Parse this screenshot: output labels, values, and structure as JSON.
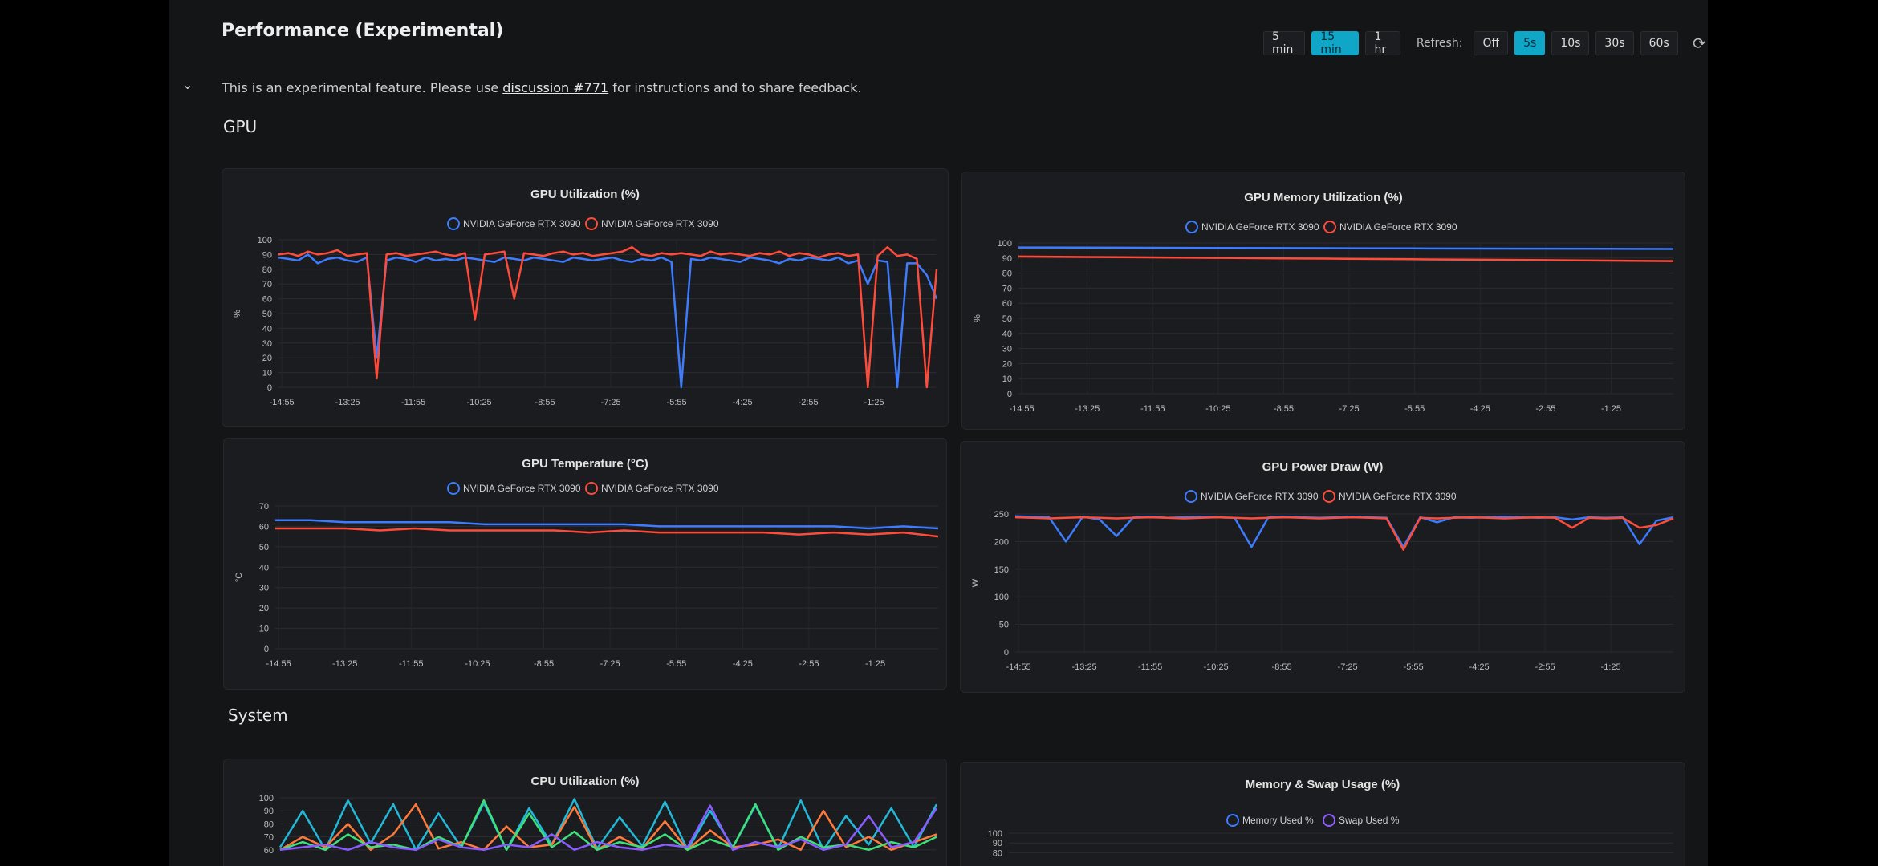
{
  "header": {
    "title": "Performance (Experimental)"
  },
  "notice": {
    "before": "This is an experimental feature. Please use ",
    "link": "discussion #771",
    "after": " for instructions and to share feedback."
  },
  "controls": {
    "ranges": [
      "5 min",
      "15 min",
      "1 hr"
    ],
    "active_range": "15 min",
    "refresh_label": "Refresh:",
    "refresh_options": [
      "Off",
      "5s",
      "10s",
      "30s",
      "60s"
    ],
    "active_refresh": "5s"
  },
  "left_marks": [
    "0",
    "0"
  ],
  "sections": {
    "gpu": "GPU",
    "system": "System"
  },
  "colors": {
    "blue": "#3d7bff",
    "red": "#ff4b3a",
    "cyan": "#22b8d8",
    "orange": "#ff7a3a",
    "green": "#3ee07a",
    "purple": "#8a5cff"
  },
  "charts": [
    {
      "id": "gpu-util",
      "chart_data": {
        "type": "line",
        "title": "GPU Utilization (%)",
        "ylabel": "%",
        "ylim": [
          0,
          100
        ],
        "yticks": [
          0,
          10,
          20,
          30,
          40,
          50,
          60,
          70,
          80,
          90,
          100
        ],
        "xticks": [
          "-14:55",
          "-13:25",
          "-11:55",
          "-10:25",
          "-8:55",
          "-7:25",
          "-5:55",
          "-4:25",
          "-2:55",
          "-1:25"
        ],
        "series": [
          {
            "name": "NVIDIA GeForce RTX 3090",
            "color": "#3d7bff",
            "values": [
              88,
              87,
              86,
              90,
              84,
              87,
              88,
              86,
              85,
              88,
              20,
              86,
              88,
              87,
              85,
              88,
              86,
              87,
              86,
              88,
              87,
              86,
              85,
              88,
              87,
              86,
              88,
              87,
              86,
              85,
              88,
              87,
              86,
              87,
              88,
              86,
              85,
              87,
              86,
              88,
              85,
              0,
              87,
              86,
              88,
              87,
              86,
              85,
              88,
              87,
              86,
              84,
              87,
              86,
              88,
              87,
              86,
              88,
              84,
              86,
              70,
              86,
              85,
              0,
              84,
              84,
              76,
              60
            ]
          },
          {
            "name": "NVIDIA GeForce RTX 3090",
            "color": "#ff4b3a",
            "values": [
              90,
              91,
              89,
              92,
              90,
              91,
              93,
              89,
              90,
              91,
              6,
              90,
              91,
              89,
              90,
              91,
              92,
              90,
              89,
              91,
              46,
              90,
              91,
              92,
              60,
              91,
              90,
              89,
              91,
              92,
              90,
              91,
              89,
              90,
              91,
              92,
              95,
              90,
              89,
              91,
              90,
              91,
              90,
              89,
              92,
              90,
              91,
              90,
              89,
              91,
              90,
              92,
              89,
              91,
              90,
              88,
              90,
              91,
              89,
              90,
              0,
              89,
              95,
              89,
              90,
              87,
              0,
              80
            ]
          }
        ]
      }
    },
    {
      "id": "gpu-mem",
      "chart_data": {
        "type": "line",
        "title": "GPU Memory Utilization (%)",
        "ylabel": "%",
        "ylim": [
          0,
          100
        ],
        "yticks": [
          0,
          10,
          20,
          30,
          40,
          50,
          60,
          70,
          80,
          90,
          100
        ],
        "xticks": [
          "-14:55",
          "-13:25",
          "-11:55",
          "-10:25",
          "-8:55",
          "-7:25",
          "-5:55",
          "-4:25",
          "-2:55",
          "-1:25"
        ],
        "series": [
          {
            "name": "NVIDIA GeForce RTX 3090",
            "color": "#3d7bff",
            "values": [
              97,
              96.9,
              96.8,
              96.7,
              96.6,
              96.5,
              96.4,
              96.3,
              96.2,
              96.1,
              96
            ]
          },
          {
            "name": "NVIDIA GeForce RTX 3090",
            "color": "#ff4b3a",
            "values": [
              91,
              90.7,
              90.4,
              90.1,
              89.8,
              89.5,
              89.2,
              88.9,
              88.6,
              88.3,
              88
            ]
          }
        ]
      }
    },
    {
      "id": "gpu-temp",
      "chart_data": {
        "type": "line",
        "title": "GPU Temperature (°C)",
        "ylabel": "°C",
        "ylim": [
          0,
          70
        ],
        "yticks": [
          0,
          10,
          20,
          30,
          40,
          50,
          60,
          70
        ],
        "xticks": [
          "-14:55",
          "-13:25",
          "-11:55",
          "-10:25",
          "-8:55",
          "-7:25",
          "-5:55",
          "-4:25",
          "-2:55",
          "-1:25"
        ],
        "series": [
          {
            "name": "NVIDIA GeForce RTX 3090",
            "color": "#3d7bff",
            "values": [
              63,
              63,
              62,
              62,
              62,
              62,
              61,
              61,
              61,
              61,
              61,
              60,
              60,
              60,
              60,
              60,
              60,
              59,
              60,
              59
            ]
          },
          {
            "name": "NVIDIA GeForce RTX 3090",
            "color": "#ff4b3a",
            "values": [
              59,
              59,
              59,
              58,
              59,
              58,
              58,
              58,
              58,
              57,
              58,
              57,
              57,
              57,
              57,
              56,
              57,
              56,
              57,
              55
            ]
          }
        ]
      }
    },
    {
      "id": "gpu-power",
      "chart_data": {
        "type": "line",
        "title": "GPU Power Draw (W)",
        "ylabel": "W",
        "ylim": [
          0,
          250
        ],
        "yticks": [
          0,
          50,
          100,
          150,
          200,
          250
        ],
        "xticks": [
          "-14:55",
          "-13:25",
          "-11:55",
          "-10:25",
          "-8:55",
          "-7:25",
          "-5:55",
          "-4:25",
          "-2:55",
          "-1:25"
        ],
        "series": [
          {
            "name": "NVIDIA GeForce RTX 3090",
            "color": "#3d7bff",
            "values": [
              246,
              245,
              244,
              200,
              245,
              240,
              210,
              244,
              245,
              243,
              244,
              245,
              244,
              243,
              190,
              244,
              245,
              244,
              243,
              244,
              245,
              244,
              243,
              190,
              244,
              235,
              244,
              243,
              244,
              245,
              244,
              243,
              244,
              240,
              244,
              243,
              244,
              195,
              238,
              244
            ]
          },
          {
            "name": "NVIDIA GeForce RTX 3090",
            "color": "#ff4b3a",
            "values": [
              244,
              243,
              242,
              243,
              244,
              243,
              242,
              243,
              244,
              243,
              242,
              243,
              244,
              243,
              242,
              243,
              244,
              243,
              242,
              243,
              244,
              243,
              242,
              185,
              243,
              242,
              243,
              244,
              243,
              242,
              243,
              244,
              243,
              225,
              243,
              242,
              243,
              225,
              230,
              242
            ]
          }
        ]
      }
    },
    {
      "id": "cpu-util",
      "chart_data": {
        "type": "line",
        "title": "CPU Utilization (%)",
        "ylabel": "",
        "ylim": [
          0,
          100
        ],
        "yticks": [
          60,
          70,
          80,
          90,
          100
        ],
        "xticks": [],
        "series": [
          {
            "color": "#22b8d8",
            "values": [
              62,
              90,
              60,
              98,
              65,
              95,
              60,
              88,
              62,
              96,
              60,
              92,
              64,
              99,
              61,
              85,
              63,
              97,
              60,
              90,
              62,
              94,
              61,
              98,
              60,
              86,
              64,
              92,
              62,
              95
            ]
          },
          {
            "color": "#ff7a3a",
            "values": [
              60,
              70,
              62,
              80,
              60,
              72,
              95,
              61,
              66,
              60,
              78,
              62,
              64,
              93,
              60,
              70,
              61,
              82,
              60,
              75,
              62,
              64,
              68,
              60,
              90,
              62,
              70,
              60,
              66,
              72
            ]
          },
          {
            "color": "#3ee07a",
            "values": [
              60,
              66,
              60,
              72,
              62,
              64,
              60,
              70,
              62,
              98,
              60,
              88,
              62,
              74,
              60,
              66,
              62,
              72,
              60,
              68,
              62,
              95,
              60,
              70,
              62,
              64,
              60,
              66,
              62,
              70
            ]
          },
          {
            "color": "#8a5cff",
            "values": [
              60,
              62,
              64,
              60,
              66,
              62,
              60,
              68,
              62,
              60,
              64,
              62,
              72,
              60,
              66,
              62,
              60,
              64,
              62,
              94,
              60,
              66,
              62,
              68,
              60,
              64,
              86,
              62,
              66,
              92
            ]
          }
        ]
      }
    },
    {
      "id": "mem-swap",
      "chart_data": {
        "type": "line",
        "title": "Memory & Swap Usage (%)",
        "ylabel": "",
        "ylim": [
          0,
          100
        ],
        "yticks": [
          80,
          90,
          100
        ],
        "xticks": [],
        "series": [
          {
            "name": "Memory Used %",
            "color": "#3d7bff",
            "values": []
          },
          {
            "name": "Swap Used %",
            "color": "#8a5cff",
            "values": []
          }
        ]
      }
    }
  ]
}
